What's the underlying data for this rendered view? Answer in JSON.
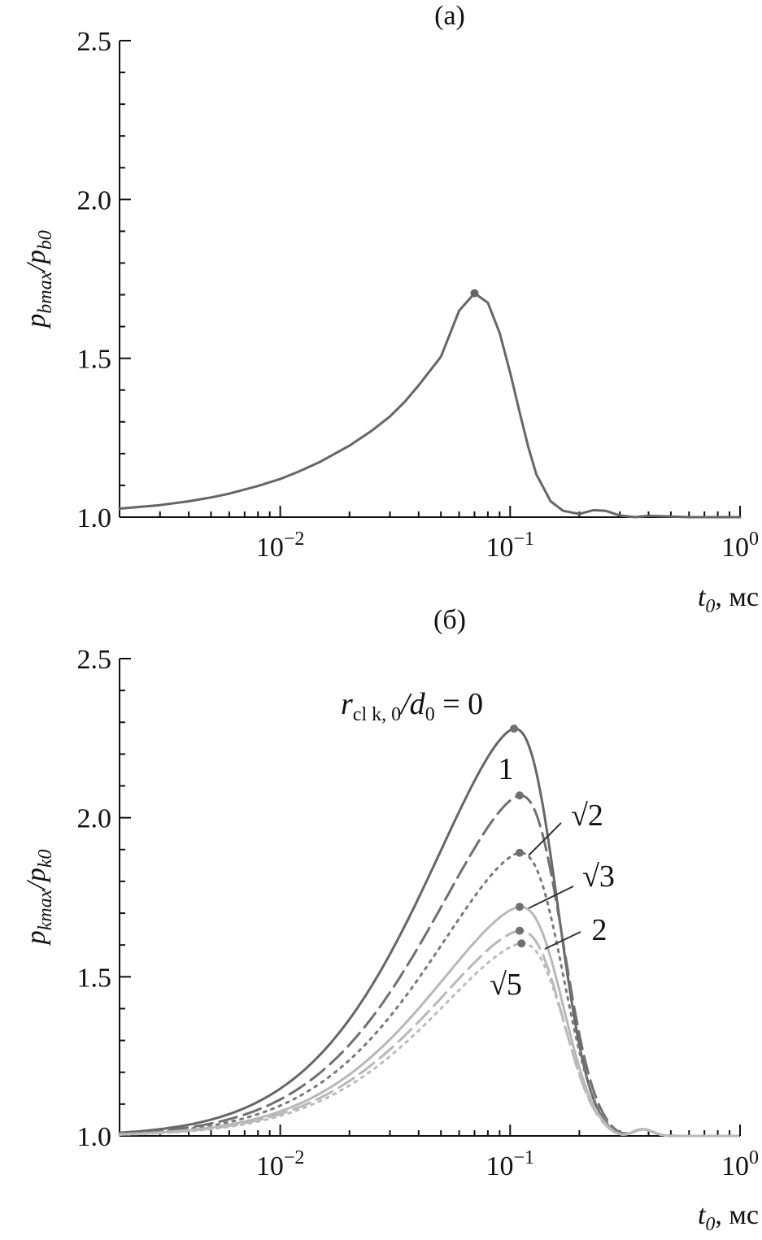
{
  "chart_data": [
    {
      "type": "line",
      "panel_label": "(а)",
      "xlabel_main": "t",
      "xlabel_sub": "0",
      "xlabel_unit": ", мс",
      "ylabel_main": "p",
      "ylabel_sub": "bmax",
      "ylabel_slash": "/p",
      "ylabel_sub2": "b0",
      "xscale": "log",
      "xlim": [
        0.002,
        1
      ],
      "ylim": [
        1.0,
        2.5
      ],
      "yticks": [
        "1.0",
        "1.5",
        "2.0",
        "2.5"
      ],
      "xticks": [
        {
          "base": "10",
          "exp": "−2"
        },
        {
          "base": "10",
          "exp": "−1"
        },
        {
          "base": "10",
          "exp": "0"
        }
      ],
      "series": [
        {
          "color": "#666666",
          "dash": "",
          "peak": [
            0.07,
            1.705
          ],
          "points": [
            [
              0.002,
              1.027
            ],
            [
              0.003,
              1.038
            ],
            [
              0.004,
              1.05
            ],
            [
              0.005,
              1.062
            ],
            [
              0.006,
              1.074
            ],
            [
              0.008,
              1.098
            ],
            [
              0.01,
              1.12
            ],
            [
              0.012,
              1.143
            ],
            [
              0.015,
              1.175
            ],
            [
              0.02,
              1.225
            ],
            [
              0.025,
              1.272
            ],
            [
              0.03,
              1.317
            ],
            [
              0.035,
              1.365
            ],
            [
              0.04,
              1.415
            ],
            [
              0.05,
              1.505
            ],
            [
              0.06,
              1.65
            ],
            [
              0.07,
              1.705
            ],
            [
              0.08,
              1.675
            ],
            [
              0.09,
              1.58
            ],
            [
              0.1,
              1.455
            ],
            [
              0.11,
              1.33
            ],
            [
              0.12,
              1.22
            ],
            [
              0.13,
              1.135
            ],
            [
              0.15,
              1.05
            ],
            [
              0.17,
              1.02
            ],
            [
              0.2,
              1.01
            ],
            [
              0.23,
              1.022
            ],
            [
              0.26,
              1.02
            ],
            [
              0.3,
              1.005
            ],
            [
              0.35,
              1.0
            ],
            [
              0.4,
              1.004
            ],
            [
              0.5,
              1.002
            ],
            [
              0.6,
              1.0
            ],
            [
              0.8,
              1.0
            ],
            [
              1.0,
              1.0
            ]
          ]
        }
      ]
    },
    {
      "type": "line",
      "panel_label": "(б)",
      "xlabel_main": "t",
      "xlabel_sub": "0",
      "xlabel_unit": ", мс",
      "ylabel_main": "p",
      "ylabel_sub": "kmax",
      "ylabel_slash": "/p",
      "ylabel_sub2": "k0",
      "xscale": "log",
      "xlim": [
        0.002,
        1
      ],
      "ylim": [
        1.0,
        2.5
      ],
      "yticks": [
        "1.0",
        "1.5",
        "2.0",
        "2.5"
      ],
      "xticks": [
        {
          "base": "10",
          "exp": "−2"
        },
        {
          "base": "10",
          "exp": "−1"
        },
        {
          "base": "10",
          "exp": "0"
        }
      ],
      "legend_title": {
        "r": "r",
        "sub": "cl k, 0",
        "slash": "/d",
        "sub2": "0",
        "eq": " = 0"
      },
      "series": [
        {
          "name": "0",
          "color": "#666666",
          "dash": "",
          "peak": [
            0.104,
            2.28
          ]
        },
        {
          "name": "1",
          "color": "#707070",
          "dash": "22,9",
          "peak": [
            0.11,
            2.07
          ]
        },
        {
          "name": "√2",
          "color": "#7a7a7a",
          "dash": "3,7",
          "peak": [
            0.11,
            1.89
          ]
        },
        {
          "name": "√3",
          "color": "#b8b8b8",
          "dash": "",
          "peak": [
            0.11,
            1.72
          ]
        },
        {
          "name": "2",
          "color": "#b8b8b8",
          "dash": "22,9",
          "peak": [
            0.11,
            1.645
          ]
        },
        {
          "name": "√5",
          "color": "#bcbcbc",
          "dash": "3,7",
          "peak": [
            0.112,
            1.605
          ]
        }
      ]
    }
  ]
}
